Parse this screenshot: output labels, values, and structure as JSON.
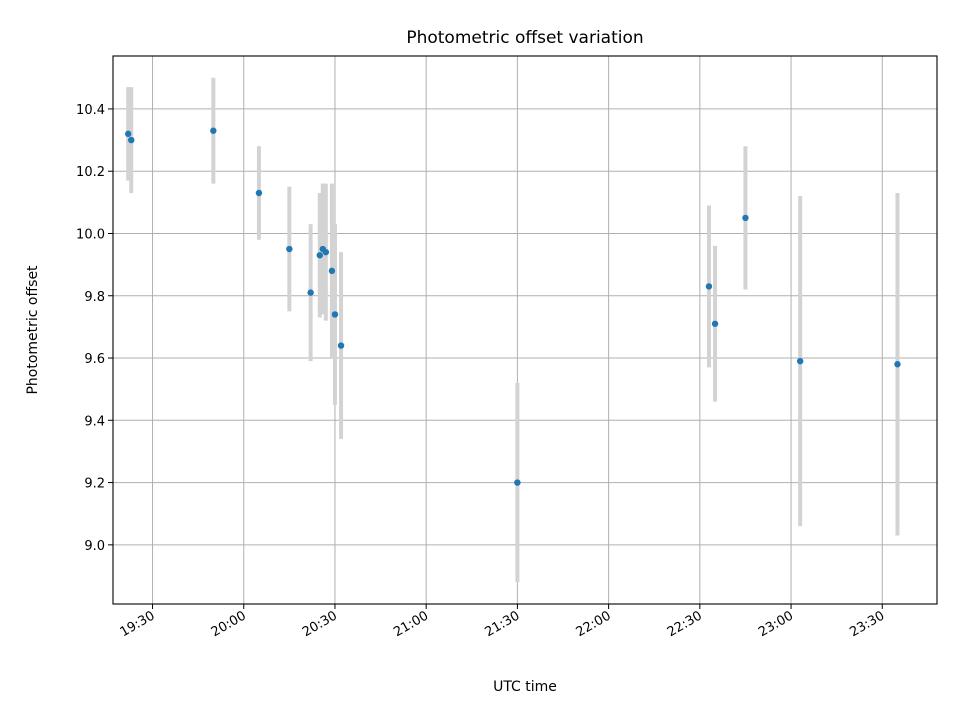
{
  "chart_data": {
    "type": "scatter",
    "title": "Photometric offset variation",
    "xlabel": "UTC time",
    "ylabel": "Photometric offset",
    "x_unit": "UTC time (HH:MM)",
    "xlim": [
      "19:17",
      "23:48"
    ],
    "ylim": [
      8.81,
      10.57
    ],
    "x_ticks": [
      "19:30",
      "20:00",
      "20:30",
      "21:00",
      "21:30",
      "22:00",
      "22:30",
      "23:00",
      "23:30"
    ],
    "y_ticks": [
      "9.0",
      "9.2",
      "9.4",
      "9.6",
      "9.8",
      "10.0",
      "10.2",
      "10.4"
    ],
    "grid": true,
    "point_color": "#1f77b4",
    "errorbar_color": "#d3d3d3",
    "points": [
      {
        "x": "19:22",
        "y": 10.32,
        "err": 0.15
      },
      {
        "x": "19:23",
        "y": 10.3,
        "err": 0.17
      },
      {
        "x": "19:50",
        "y": 10.33,
        "err": 0.17
      },
      {
        "x": "20:05",
        "y": 10.13,
        "err": 0.15
      },
      {
        "x": "20:15",
        "y": 9.95,
        "err": 0.2
      },
      {
        "x": "20:22",
        "y": 9.81,
        "err": 0.22
      },
      {
        "x": "20:25",
        "y": 9.93,
        "err": 0.2
      },
      {
        "x": "20:26",
        "y": 9.95,
        "err": 0.21
      },
      {
        "x": "20:27",
        "y": 9.94,
        "err": 0.22
      },
      {
        "x": "20:29",
        "y": 9.88,
        "err": 0.28
      },
      {
        "x": "20:30",
        "y": 9.74,
        "err": 0.29
      },
      {
        "x": "20:32",
        "y": 9.64,
        "err": 0.3
      },
      {
        "x": "21:30",
        "y": 9.2,
        "err": 0.32
      },
      {
        "x": "22:33",
        "y": 9.83,
        "err": 0.26
      },
      {
        "x": "22:35",
        "y": 9.71,
        "err": 0.25
      },
      {
        "x": "22:45",
        "y": 10.05,
        "err": 0.23
      },
      {
        "x": "23:03",
        "y": 9.59,
        "err": 0.53
      },
      {
        "x": "23:35",
        "y": 9.58,
        "err": 0.55
      }
    ]
  }
}
